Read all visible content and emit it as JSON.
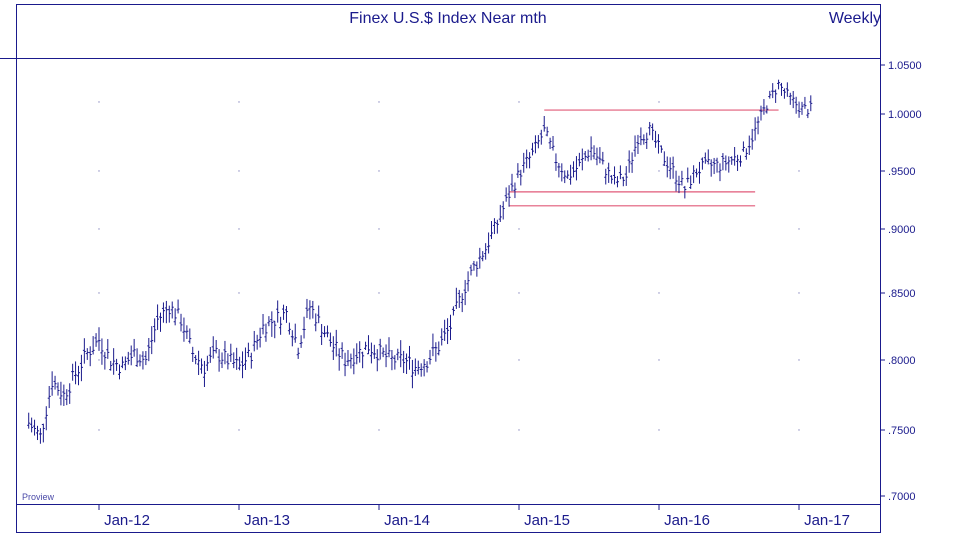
{
  "chart_data": {
    "type": "ohlc",
    "title": "Finex U.S.$ Index Near mth",
    "period_label": "Weekly",
    "watermark": "Proview",
    "xlabel": "",
    "ylabel": "",
    "x_ticks": [
      "Jan-12",
      "Jan-13",
      "Jan-14",
      "Jan-15",
      "Jan-16",
      "Jan-17"
    ],
    "y_ticks": [
      ".7000",
      ".7500",
      ".8000",
      ".8500",
      ".9000",
      ".9500",
      "1.0000",
      "1.0500"
    ],
    "y_tick_values": [
      0.7,
      0.75,
      0.8,
      0.85,
      0.9,
      0.95,
      1.0,
      1.05
    ],
    "ylim": [
      0.7,
      1.06
    ],
    "x_range": [
      "2011-07",
      "2017-04"
    ],
    "grid": "dotted",
    "horizontal_lines": [
      {
        "value": 1.004,
        "from": "2015-03",
        "to": "2016-11",
        "color": "#e05a78"
      },
      {
        "value": 0.932,
        "from": "2014-12",
        "to": "2016-09",
        "color": "#e05a78"
      },
      {
        "value": 0.92,
        "from": "2014-12",
        "to": "2016-09",
        "color": "#e05a78"
      }
    ],
    "series": [
      {
        "color": "#1a1a8c",
        "x": [
          "2011-07",
          "2011-08",
          "2011-09",
          "2011-10",
          "2011-11",
          "2011-12",
          "2012-01",
          "2012-02",
          "2012-03",
          "2012-04",
          "2012-05",
          "2012-06",
          "2012-07",
          "2012-08",
          "2012-09",
          "2012-10",
          "2012-11",
          "2012-12",
          "2013-01",
          "2013-02",
          "2013-03",
          "2013-04",
          "2013-05",
          "2013-06",
          "2013-07",
          "2013-08",
          "2013-09",
          "2013-10",
          "2013-11",
          "2013-12",
          "2014-01",
          "2014-02",
          "2014-03",
          "2014-04",
          "2014-05",
          "2014-06",
          "2014-07",
          "2014-08",
          "2014-09",
          "2014-10",
          "2014-11",
          "2014-12",
          "2015-01",
          "2015-02",
          "2015-03",
          "2015-04",
          "2015-05",
          "2015-06",
          "2015-07",
          "2015-08",
          "2015-09",
          "2015-10",
          "2015-11",
          "2015-12",
          "2016-01",
          "2016-02",
          "2016-03",
          "2016-04",
          "2016-05",
          "2016-06",
          "2016-07",
          "2016-08",
          "2016-09",
          "2016-10",
          "2016-11",
          "2016-12",
          "2017-01",
          "2017-02"
        ],
        "values": [
          0.755,
          0.745,
          0.785,
          0.775,
          0.79,
          0.805,
          0.815,
          0.8,
          0.795,
          0.805,
          0.8,
          0.83,
          0.84,
          0.83,
          0.805,
          0.795,
          0.805,
          0.8,
          0.795,
          0.805,
          0.825,
          0.83,
          0.835,
          0.81,
          0.84,
          0.825,
          0.81,
          0.8,
          0.805,
          0.81,
          0.805,
          0.8,
          0.8,
          0.795,
          0.8,
          0.81,
          0.825,
          0.85,
          0.87,
          0.885,
          0.905,
          0.93,
          0.95,
          0.965,
          0.985,
          0.96,
          0.945,
          0.955,
          0.97,
          0.955,
          0.94,
          0.945,
          0.98,
          0.985,
          0.965,
          0.95,
          0.935,
          0.95,
          0.955,
          0.955,
          0.96,
          0.965,
          0.985,
          1.01,
          1.03,
          1.015,
          1.005,
          1.005
        ],
        "note": "approx monthly closes"
      }
    ]
  }
}
